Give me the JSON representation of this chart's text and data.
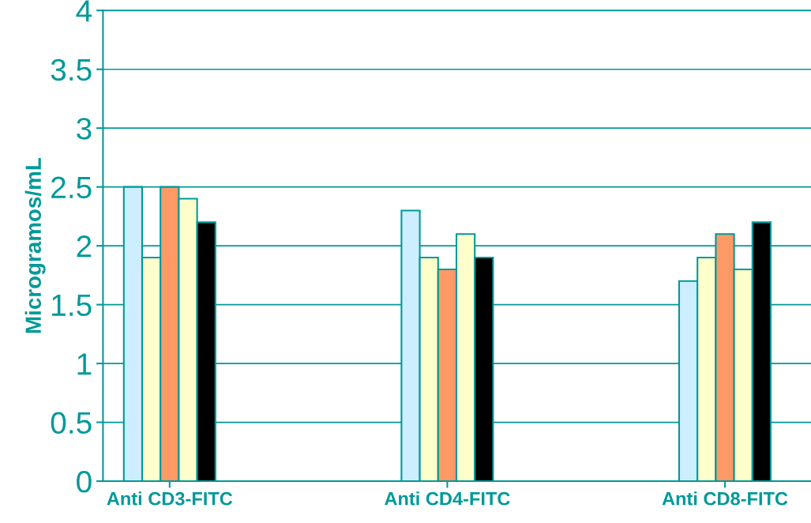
{
  "chart_data": {
    "type": "bar",
    "ylabel": "Microgramos/mL",
    "categories": [
      "Anti CD3-FITC",
      "Anti CD4-FITC",
      "Anti CD8-FITC"
    ],
    "series": [
      {
        "color": "#cceeff",
        "values": [
          2.5,
          2.3,
          1.7
        ]
      },
      {
        "color": "#ffffcc",
        "values": [
          1.9,
          1.9,
          1.9
        ]
      },
      {
        "color": "#ff9966",
        "values": [
          2.5,
          1.8,
          2.1
        ]
      },
      {
        "color": "#ffffcc",
        "values": [
          2.4,
          2.1,
          1.8
        ]
      },
      {
        "color": "#000000",
        "values": [
          2.2,
          1.9,
          2.2
        ]
      }
    ],
    "ylim": [
      0,
      4
    ],
    "yticks": [
      0,
      0.5,
      1,
      1.5,
      2,
      2.5,
      3,
      3.5,
      4
    ],
    "grid": "y",
    "legend": false
  }
}
